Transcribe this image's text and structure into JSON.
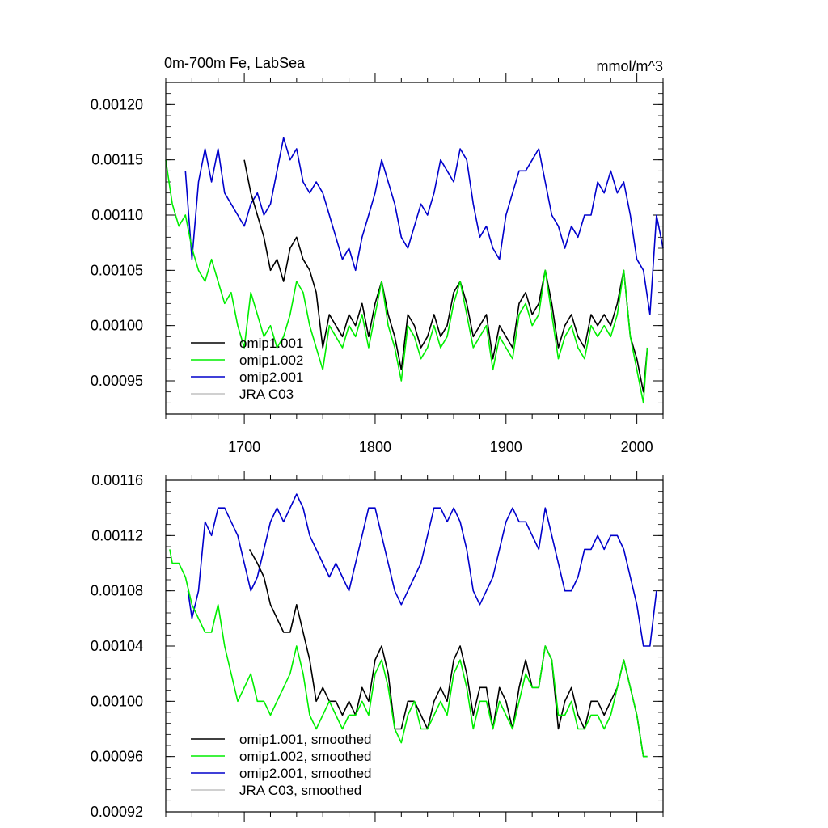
{
  "chart_data": [
    {
      "type": "line",
      "title_left": "0m-700m Fe, LabSea",
      "title_right": "mmol/m^3",
      "xlim": [
        1640,
        2020
      ],
      "ylim": [
        0.00092,
        0.00122
      ],
      "x_ticks": [
        1700,
        1800,
        1900,
        2000
      ],
      "x_tick_labels": [
        "1700",
        "1800",
        "1900",
        "2000"
      ],
      "y_ticks": [
        0.00095,
        0.001,
        0.00105,
        0.0011,
        0.00115,
        0.0012
      ],
      "y_tick_labels": [
        "0.00095",
        "0.00100",
        "0.00105",
        "0.00110",
        "0.00115",
        "0.00120"
      ],
      "legend": [
        "omip1.001",
        "omip1.002",
        "omip2.001",
        "JRA C03"
      ],
      "series": [
        {
          "name": "omip1.001",
          "color": "#000000",
          "x": [
            1700,
            1705,
            1710,
            1715,
            1720,
            1725,
            1730,
            1735,
            1740,
            1745,
            1750,
            1755,
            1760,
            1765,
            1770,
            1775,
            1780,
            1785,
            1790,
            1795,
            1800,
            1805,
            1810,
            1815,
            1820,
            1825,
            1830,
            1835,
            1840,
            1845,
            1850,
            1855,
            1860,
            1865,
            1870,
            1875,
            1880,
            1885,
            1890,
            1895,
            1900,
            1905,
            1910,
            1915,
            1920,
            1925,
            1930,
            1935,
            1940,
            1945,
            1950,
            1955,
            1960,
            1965,
            1970,
            1975,
            1980,
            1985,
            1990,
            1995,
            2000,
            2005,
            2008
          ],
          "values": [
            0.00115,
            0.00112,
            0.0011,
            0.00108,
            0.00105,
            0.00106,
            0.00104,
            0.00107,
            0.00108,
            0.00106,
            0.00105,
            0.00103,
            0.00098,
            0.00101,
            0.001,
            0.00099,
            0.00101,
            0.001,
            0.00102,
            0.00099,
            0.00102,
            0.00104,
            0.00101,
            0.00099,
            0.00096,
            0.00101,
            0.001,
            0.00098,
            0.00099,
            0.00101,
            0.00099,
            0.001,
            0.00103,
            0.00104,
            0.00102,
            0.00099,
            0.001,
            0.00101,
            0.00097,
            0.001,
            0.00099,
            0.00098,
            0.00102,
            0.00103,
            0.00101,
            0.00102,
            0.00105,
            0.00102,
            0.00098,
            0.001,
            0.00101,
            0.00099,
            0.00098,
            0.00101,
            0.001,
            0.00101,
            0.001,
            0.00102,
            0.00105,
            0.00099,
            0.00097,
            0.00094,
            0.00098
          ]
        },
        {
          "name": "omip1.002",
          "color": "#00ee00",
          "x": [
            1640,
            1645,
            1650,
            1655,
            1660,
            1665,
            1670,
            1675,
            1680,
            1685,
            1690,
            1695,
            1700,
            1705,
            1710,
            1715,
            1720,
            1725,
            1730,
            1735,
            1740,
            1745,
            1750,
            1755,
            1760,
            1765,
            1770,
            1775,
            1780,
            1785,
            1790,
            1795,
            1800,
            1805,
            1810,
            1815,
            1820,
            1825,
            1830,
            1835,
            1840,
            1845,
            1850,
            1855,
            1860,
            1865,
            1870,
            1875,
            1880,
            1885,
            1890,
            1895,
            1900,
            1905,
            1910,
            1915,
            1920,
            1925,
            1930,
            1935,
            1940,
            1945,
            1950,
            1955,
            1960,
            1965,
            1970,
            1975,
            1980,
            1985,
            1990,
            1995,
            2000,
            2005,
            2008
          ],
          "values": [
            0.00115,
            0.00111,
            0.00109,
            0.0011,
            0.00107,
            0.00105,
            0.00104,
            0.00106,
            0.00104,
            0.00102,
            0.00103,
            0.001,
            0.00098,
            0.00103,
            0.00101,
            0.00099,
            0.001,
            0.00098,
            0.00099,
            0.00101,
            0.00104,
            0.00103,
            0.001,
            0.00098,
            0.00096,
            0.001,
            0.00099,
            0.00098,
            0.001,
            0.00099,
            0.00101,
            0.00098,
            0.00101,
            0.00104,
            0.001,
            0.00098,
            0.00095,
            0.001,
            0.00099,
            0.00097,
            0.00098,
            0.001,
            0.00098,
            0.00099,
            0.00102,
            0.00104,
            0.00101,
            0.00098,
            0.00099,
            0.001,
            0.00096,
            0.00099,
            0.00098,
            0.00097,
            0.00101,
            0.00102,
            0.001,
            0.00101,
            0.00105,
            0.00101,
            0.00097,
            0.00099,
            0.001,
            0.00098,
            0.00097,
            0.001,
            0.00099,
            0.001,
            0.00099,
            0.00101,
            0.00105,
            0.00099,
            0.00096,
            0.00093,
            0.00098
          ]
        },
        {
          "name": "omip2.001",
          "color": "#0000cc",
          "x": [
            1655,
            1660,
            1665,
            1670,
            1675,
            1680,
            1685,
            1690,
            1695,
            1700,
            1705,
            1710,
            1715,
            1720,
            1725,
            1730,
            1735,
            1740,
            1745,
            1750,
            1755,
            1760,
            1765,
            1770,
            1775,
            1780,
            1785,
            1790,
            1795,
            1800,
            1805,
            1810,
            1815,
            1820,
            1825,
            1830,
            1835,
            1840,
            1845,
            1850,
            1855,
            1860,
            1865,
            1870,
            1875,
            1880,
            1885,
            1890,
            1895,
            1900,
            1905,
            1910,
            1915,
            1920,
            1925,
            1930,
            1935,
            1940,
            1945,
            1950,
            1955,
            1960,
            1965,
            1970,
            1975,
            1980,
            1985,
            1990,
            1995,
            2000,
            2005,
            2010,
            2015,
            2020
          ],
          "values": [
            0.00114,
            0.00106,
            0.00113,
            0.00116,
            0.00113,
            0.00116,
            0.00112,
            0.00111,
            0.0011,
            0.00109,
            0.00111,
            0.00112,
            0.0011,
            0.00111,
            0.00114,
            0.00117,
            0.00115,
            0.00116,
            0.00113,
            0.00112,
            0.00113,
            0.00112,
            0.0011,
            0.00108,
            0.00106,
            0.00107,
            0.00105,
            0.00108,
            0.0011,
            0.00112,
            0.00115,
            0.00113,
            0.00111,
            0.00108,
            0.00107,
            0.00109,
            0.00111,
            0.0011,
            0.00112,
            0.00115,
            0.00114,
            0.00113,
            0.00116,
            0.00115,
            0.00111,
            0.00108,
            0.00109,
            0.00107,
            0.00106,
            0.0011,
            0.00112,
            0.00114,
            0.00114,
            0.00115,
            0.00116,
            0.00113,
            0.0011,
            0.00109,
            0.00107,
            0.00109,
            0.00108,
            0.0011,
            0.0011,
            0.00113,
            0.00112,
            0.00114,
            0.00112,
            0.00113,
            0.0011,
            0.00106,
            0.00105,
            0.00101,
            0.0011,
            0.00107
          ]
        }
      ]
    },
    {
      "type": "line",
      "xlim": [
        1640,
        2020
      ],
      "ylim": [
        0.00092,
        0.00116
      ],
      "y_ticks": [
        0.00092,
        0.00096,
        0.001,
        0.00104,
        0.00108,
        0.00112,
        0.00116
      ],
      "y_tick_labels": [
        "0.00092",
        "0.00096",
        "0.00100",
        "0.00104",
        "0.00108",
        "0.00112",
        "0.00116"
      ],
      "legend": [
        "omip1.001, smoothed",
        "omip1.002, smoothed",
        "omip2.001, smoothed",
        "JRA C03, smoothed"
      ],
      "series": [
        {
          "name": "omip1.001, smoothed",
          "color": "#000000",
          "x": [
            1704,
            1710,
            1715,
            1720,
            1725,
            1730,
            1735,
            1740,
            1745,
            1750,
            1755,
            1760,
            1765,
            1770,
            1775,
            1780,
            1785,
            1790,
            1795,
            1800,
            1805,
            1810,
            1815,
            1820,
            1825,
            1830,
            1835,
            1840,
            1845,
            1850,
            1855,
            1860,
            1865,
            1870,
            1875,
            1880,
            1885,
            1890,
            1895,
            1900,
            1905,
            1910,
            1915,
            1920,
            1925,
            1930,
            1935,
            1940,
            1945,
            1950,
            1955,
            1960,
            1965,
            1970,
            1975,
            1980,
            1985,
            1990,
            1995,
            2000,
            2005,
            2008
          ],
          "values": [
            0.00111,
            0.0011,
            0.00109,
            0.00107,
            0.00106,
            0.00105,
            0.00105,
            0.00107,
            0.00105,
            0.00103,
            0.001,
            0.00101,
            0.001,
            0.001,
            0.00099,
            0.001,
            0.00099,
            0.00101,
            0.001,
            0.00103,
            0.00104,
            0.00102,
            0.00098,
            0.00098,
            0.001,
            0.001,
            0.00099,
            0.00098,
            0.001,
            0.00101,
            0.001,
            0.00103,
            0.00104,
            0.00102,
            0.00099,
            0.00101,
            0.00101,
            0.00098,
            0.00101,
            0.001,
            0.00098,
            0.00101,
            0.00103,
            0.00101,
            0.00101,
            0.00104,
            0.00103,
            0.00098,
            0.001,
            0.00101,
            0.00099,
            0.00098,
            0.001,
            0.001,
            0.00099,
            0.001,
            0.00101,
            0.00103,
            0.00101,
            0.00099,
            0.00096,
            0.00096
          ]
        },
        {
          "name": "omip1.002, smoothed",
          "color": "#00ee00",
          "x": [
            1643,
            1645,
            1650,
            1655,
            1660,
            1665,
            1670,
            1675,
            1680,
            1685,
            1690,
            1695,
            1700,
            1705,
            1710,
            1715,
            1720,
            1725,
            1730,
            1735,
            1740,
            1745,
            1750,
            1755,
            1760,
            1765,
            1770,
            1775,
            1780,
            1785,
            1790,
            1795,
            1800,
            1805,
            1810,
            1815,
            1820,
            1825,
            1830,
            1835,
            1840,
            1845,
            1850,
            1855,
            1860,
            1865,
            1870,
            1875,
            1880,
            1885,
            1890,
            1895,
            1900,
            1905,
            1910,
            1915,
            1920,
            1925,
            1930,
            1935,
            1940,
            1945,
            1950,
            1955,
            1960,
            1965,
            1970,
            1975,
            1980,
            1985,
            1990,
            1995,
            2000,
            2005,
            2008
          ],
          "values": [
            0.00111,
            0.0011,
            0.0011,
            0.00109,
            0.00107,
            0.00106,
            0.00105,
            0.00105,
            0.00107,
            0.00104,
            0.00102,
            0.001,
            0.00101,
            0.00102,
            0.001,
            0.001,
            0.00099,
            0.001,
            0.00101,
            0.00102,
            0.00104,
            0.00102,
            0.00099,
            0.00098,
            0.00099,
            0.001,
            0.00099,
            0.00098,
            0.00099,
            0.00099,
            0.001,
            0.00099,
            0.00102,
            0.00103,
            0.00101,
            0.00098,
            0.00097,
            0.00099,
            0.001,
            0.00098,
            0.00098,
            0.00099,
            0.001,
            0.00099,
            0.00102,
            0.00103,
            0.00101,
            0.00098,
            0.001,
            0.001,
            0.00098,
            0.001,
            0.00099,
            0.00098,
            0.001,
            0.00102,
            0.00101,
            0.00101,
            0.00104,
            0.00103,
            0.00099,
            0.00099,
            0.001,
            0.00098,
            0.00098,
            0.00099,
            0.00099,
            0.00098,
            0.00099,
            0.00101,
            0.00103,
            0.00101,
            0.00099,
            0.00096,
            0.00096
          ]
        },
        {
          "name": "omip2.001, smoothed",
          "color": "#0000cc",
          "x": [
            1657,
            1660,
            1665,
            1670,
            1675,
            1680,
            1685,
            1690,
            1695,
            1700,
            1705,
            1710,
            1715,
            1720,
            1725,
            1730,
            1735,
            1740,
            1745,
            1750,
            1755,
            1760,
            1765,
            1770,
            1775,
            1780,
            1785,
            1790,
            1795,
            1800,
            1805,
            1810,
            1815,
            1820,
            1825,
            1830,
            1835,
            1840,
            1845,
            1850,
            1855,
            1860,
            1865,
            1870,
            1875,
            1880,
            1885,
            1890,
            1895,
            1900,
            1905,
            1910,
            1915,
            1920,
            1925,
            1930,
            1935,
            1940,
            1945,
            1950,
            1955,
            1960,
            1965,
            1970,
            1975,
            1980,
            1985,
            1990,
            1995,
            2000,
            2005,
            2010,
            2015
          ],
          "values": [
            0.00108,
            0.00106,
            0.00108,
            0.00113,
            0.00112,
            0.00114,
            0.00114,
            0.00113,
            0.00112,
            0.0011,
            0.00108,
            0.00109,
            0.00111,
            0.00113,
            0.00114,
            0.00113,
            0.00114,
            0.00115,
            0.00114,
            0.00112,
            0.00111,
            0.0011,
            0.00109,
            0.0011,
            0.00109,
            0.00108,
            0.0011,
            0.00112,
            0.00114,
            0.00114,
            0.00112,
            0.0011,
            0.00108,
            0.00107,
            0.00108,
            0.00109,
            0.0011,
            0.00112,
            0.00114,
            0.00114,
            0.00113,
            0.00114,
            0.00113,
            0.00111,
            0.00108,
            0.00107,
            0.00108,
            0.00109,
            0.00111,
            0.00113,
            0.00114,
            0.00113,
            0.00113,
            0.00112,
            0.00111,
            0.00114,
            0.00112,
            0.0011,
            0.00108,
            0.00108,
            0.00109,
            0.00111,
            0.00111,
            0.00112,
            0.00111,
            0.00112,
            0.00112,
            0.00111,
            0.00109,
            0.00107,
            0.00104,
            0.00104,
            0.00108
          ]
        }
      ]
    }
  ]
}
